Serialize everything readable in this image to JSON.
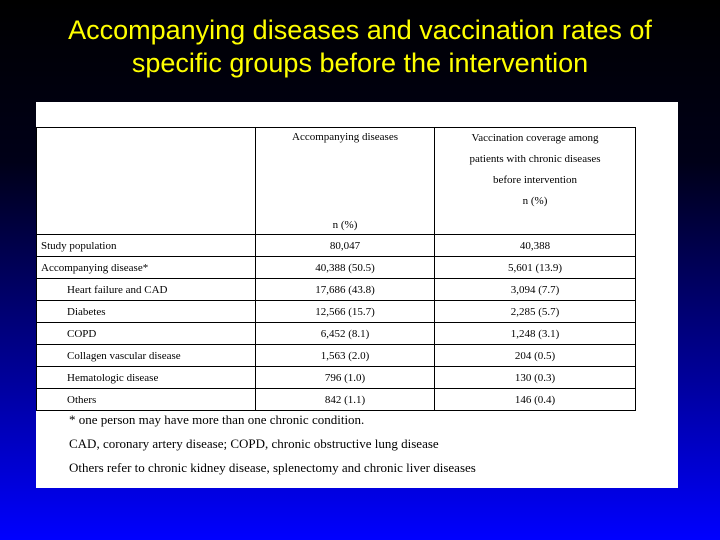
{
  "title": {
    "line1": "Accompanying diseases and vaccination rates of",
    "line2": "specific groups before the intervention"
  },
  "table": {
    "header": {
      "col1_top": "Accompanying diseases",
      "col1_bottom": "n (%)",
      "col2_lines": [
        "Vaccination coverage among",
        "patients with chronic diseases",
        "before intervention",
        "n (%)"
      ]
    },
    "rows": [
      {
        "label": "Study population",
        "accompanying": "80,047",
        "vaccination": "40,388"
      },
      {
        "label": "Accompanying disease*",
        "accompanying": "40,388 (50.5)",
        "vaccination": "5,601 (13.9)"
      },
      {
        "label": "Heart failure and CAD",
        "accompanying": "17,686 (43.8)",
        "vaccination": "3,094 (7.7)"
      },
      {
        "label": "Diabetes",
        "accompanying": "12,566 (15.7)",
        "vaccination": "2,285 (5.7)"
      },
      {
        "label": "COPD",
        "accompanying": "6,452 (8.1)",
        "vaccination": "1,248 (3.1)"
      },
      {
        "label": "Collagen vascular disease",
        "accompanying": "1,563 (2.0)",
        "vaccination": "204 (0.5)"
      },
      {
        "label": "Hematologic disease",
        "accompanying": "796 (1.0)",
        "vaccination": "130 (0.3)"
      },
      {
        "label": "Others",
        "accompanying": "842 (1.1)",
        "vaccination": "146 (0.4)"
      }
    ]
  },
  "notes": [
    "* one person may have more than one chronic condition.",
    "CAD, coronary artery disease; COPD, chronic obstructive lung disease",
    "Others refer to chronic kidney disease, splenectomy and chronic liver diseases"
  ],
  "colors": {
    "title": "#ffff00",
    "background_top": "#000000",
    "background_bottom": "#0000ff",
    "panel": "#ffffff"
  }
}
